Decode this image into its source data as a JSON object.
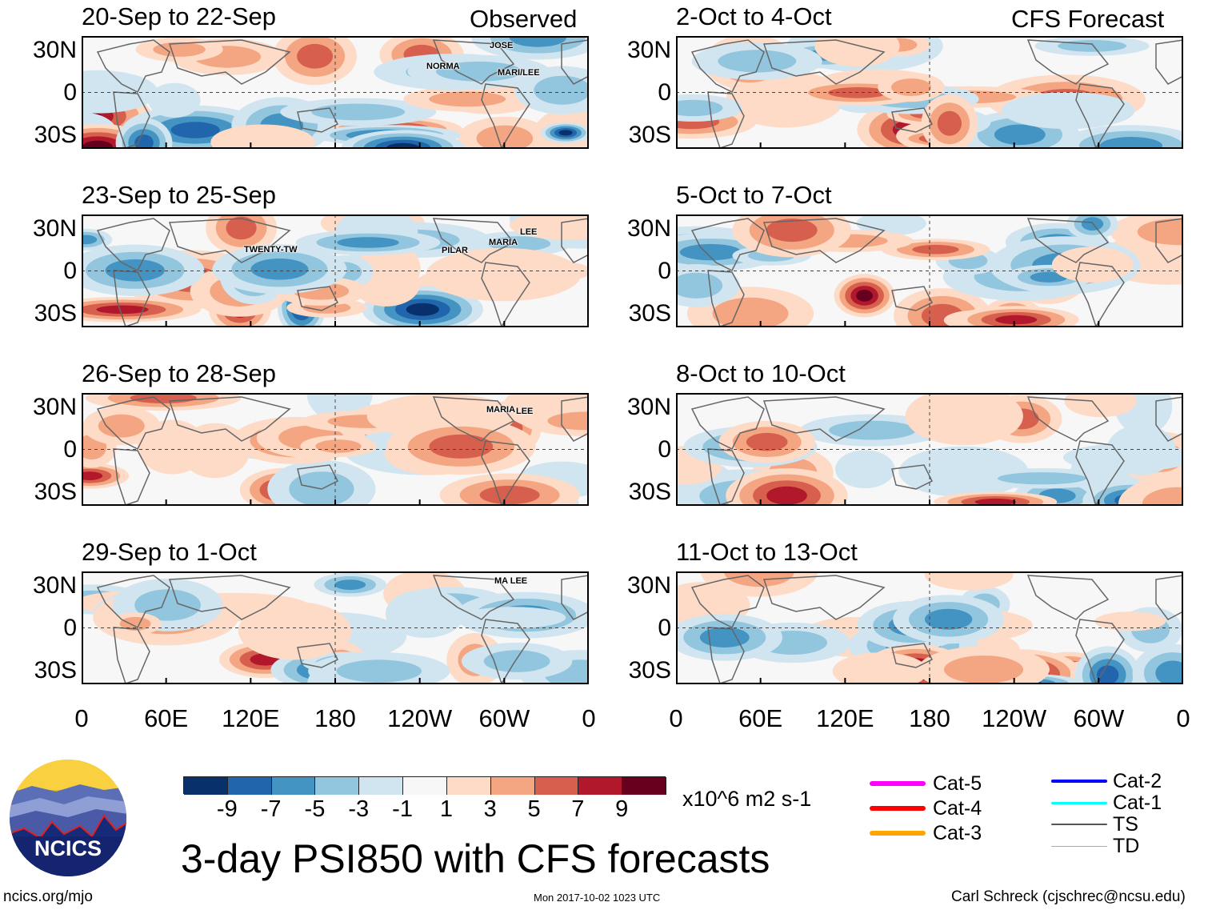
{
  "figure": {
    "title": "3-day PSI850 with CFS forecasts",
    "units": "x10^6 m2 s-1",
    "footer_left": "ncics.org/mjo",
    "footer_center": "Mon 2017-10-02 1023 UTC",
    "footer_right": "Carl Schreck (cjschrec@ncsu.edu)",
    "logo_text": "NCICS"
  },
  "columns": [
    {
      "label": "Observed"
    },
    {
      "label": "CFS Forecast"
    }
  ],
  "lat_labels": [
    "30N",
    "0",
    "30S"
  ],
  "lon_labels": [
    "0",
    "60E",
    "120E",
    "180",
    "120W",
    "60W",
    "0"
  ],
  "panels": [
    {
      "title": "20-Sep to 22-Sep",
      "storms": [
        "JOSE",
        "NORMA",
        "MARI/LEE"
      ]
    },
    {
      "title": "23-Sep to 25-Sep",
      "storms": [
        "TWENTY-TW",
        "PILAR",
        "MARIA",
        "LEE"
      ]
    },
    {
      "title": "26-Sep to 28-Sep",
      "storms": [
        "MARIA",
        "LEE"
      ]
    },
    {
      "title": "29-Sep to 1-Oct",
      "storms": [
        "MA LEE"
      ]
    },
    {
      "title": "2-Oct to 4-Oct",
      "storms": []
    },
    {
      "title": "5-Oct to 7-Oct",
      "storms": []
    },
    {
      "title": "8-Oct to 10-Oct",
      "storms": []
    },
    {
      "title": "11-Oct to 13-Oct",
      "storms": []
    }
  ],
  "colorbar": {
    "labels": [
      "-9",
      "-7",
      "-5",
      "-3",
      "-1",
      "1",
      "3",
      "5",
      "7",
      "9"
    ],
    "colors": [
      "#08306b",
      "#2166ac",
      "#4393c3",
      "#92c5de",
      "#d1e5f0",
      "#f7f7f7",
      "#fddbc7",
      "#f4a582",
      "#d6604d",
      "#b2182b",
      "#67001f"
    ]
  },
  "legend": [
    {
      "label": "Cat-5",
      "color": "#ff00ff"
    },
    {
      "label": "Cat-4",
      "color": "#ff0000"
    },
    {
      "label": "Cat-3",
      "color": "#ffa500"
    },
    {
      "label": "Cat-2",
      "color": "#0000ff"
    },
    {
      "label": "Cat-1",
      "color": "#00ffff"
    },
    {
      "label": "TS",
      "color": "#555555"
    },
    {
      "label": "TD",
      "color": "#aaaaaa"
    }
  ]
}
